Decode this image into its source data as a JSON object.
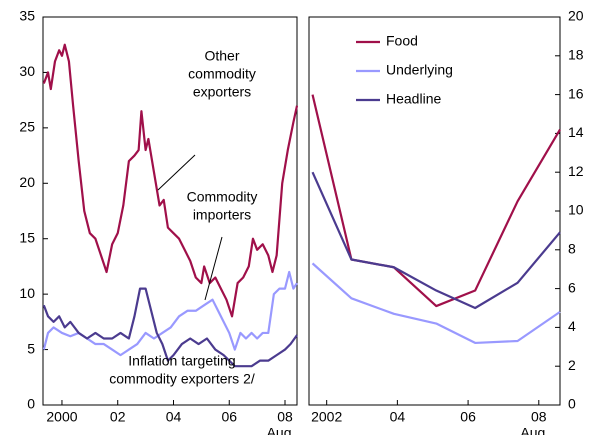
{
  "chart_data": [
    {
      "type": "line",
      "xlim": [
        1999.32,
        2008.43
      ],
      "ylim": [
        0,
        35
      ],
      "yticks": [
        0,
        5,
        10,
        15,
        20,
        25,
        30,
        35
      ],
      "xticks": [
        2000,
        {
          "value": 2002,
          "label": "02"
        },
        {
          "value": 2004,
          "label": "04"
        },
        {
          "value": 2006,
          "label": "06"
        },
        {
          "value": 2008,
          "label": "08"
        }
      ],
      "x_note": "Aug.",
      "y_axis_position": "left",
      "series": [
        {
          "label": [
            "Other",
            "commodity",
            "exporters"
          ],
          "color": "#a0104a",
          "x": [
            1999.35,
            1999.5,
            1999.6,
            1999.75,
            1999.9,
            2000.0,
            2000.1,
            2000.25,
            2000.4,
            2000.6,
            2000.8,
            2001.0,
            2001.2,
            2001.4,
            2001.6,
            2001.8,
            2002.0,
            2002.2,
            2002.4,
            2002.6,
            2002.75,
            2002.85,
            2003.0,
            2003.1,
            2003.3,
            2003.5,
            2003.65,
            2003.8,
            2004.0,
            2004.2,
            2004.4,
            2004.6,
            2004.8,
            2005.0,
            2005.1,
            2005.3,
            2005.5,
            2005.7,
            2005.9,
            2006.1,
            2006.3,
            2006.5,
            2006.7,
            2006.85,
            2007.0,
            2007.2,
            2007.4,
            2007.55,
            2007.7,
            2007.9,
            2008.1,
            2008.3,
            2008.43
          ],
          "values": [
            29,
            30,
            28.5,
            31,
            32,
            31.5,
            32.5,
            31,
            27,
            22,
            17.5,
            15.5,
            15,
            13.5,
            12,
            14.5,
            15.5,
            18,
            22,
            22.5,
            23,
            26.5,
            23,
            24,
            21,
            18,
            18.5,
            16,
            15.5,
            15,
            14,
            13,
            11.5,
            11,
            12.5,
            11,
            11.5,
            10.5,
            9.5,
            8,
            11,
            11.5,
            12.5,
            15,
            14,
            14.5,
            13.5,
            12,
            13.5,
            20,
            23,
            25.5,
            27
          ]
        },
        {
          "label": [
            "Commodity",
            "importers"
          ],
          "color": "#9999ff",
          "x": [
            1999.35,
            1999.5,
            1999.7,
            2000.0,
            2000.3,
            2000.6,
            2000.9,
            2001.2,
            2001.5,
            2001.8,
            2002.1,
            2002.4,
            2002.7,
            2003.0,
            2003.3,
            2003.6,
            2003.9,
            2004.2,
            2004.5,
            2004.8,
            2005.1,
            2005.4,
            2005.6,
            2005.8,
            2006.0,
            2006.2,
            2006.4,
            2006.6,
            2006.8,
            2007.0,
            2007.2,
            2007.4,
            2007.6,
            2007.8,
            2008.0,
            2008.15,
            2008.3,
            2008.43
          ],
          "values": [
            5,
            6.5,
            7,
            6.5,
            6.2,
            6.5,
            6,
            5.5,
            5.5,
            5,
            4.5,
            5,
            5.5,
            6.5,
            6,
            6.5,
            7,
            8,
            8.5,
            8.5,
            9,
            9.5,
            8.5,
            7.5,
            6.5,
            5,
            6.5,
            6,
            6.5,
            6,
            6.5,
            6.5,
            10,
            10.5,
            10.5,
            12,
            10.5,
            11
          ]
        },
        {
          "label": [
            "Inflation targeting",
            "commodity exporters 2/"
          ],
          "color": "#4b3b8f",
          "x": [
            1999.35,
            1999.5,
            1999.7,
            1999.9,
            2000.1,
            2000.3,
            2000.6,
            2000.9,
            2001.2,
            2001.5,
            2001.8,
            2002.1,
            2002.4,
            2002.6,
            2002.8,
            2003.0,
            2003.2,
            2003.4,
            2003.6,
            2003.8,
            2004.0,
            2004.3,
            2004.6,
            2004.9,
            2005.2,
            2005.5,
            2005.8,
            2006.0,
            2006.2,
            2006.5,
            2006.8,
            2007.1,
            2007.4,
            2007.7,
            2008.0,
            2008.2,
            2008.43
          ],
          "values": [
            9,
            8,
            7.5,
            8,
            7,
            7.5,
            6.5,
            6,
            6.5,
            6,
            6,
            6.5,
            6,
            8,
            10.5,
            10.5,
            8.5,
            6.5,
            5.5,
            4,
            4.5,
            5.5,
            6,
            5.5,
            6,
            5,
            4.5,
            4,
            3.5,
            3.5,
            3.5,
            4,
            4,
            4.5,
            5,
            5.5,
            6.3
          ]
        }
      ]
    },
    {
      "type": "line",
      "xlim": [
        2001.5,
        2008.6
      ],
      "ylim": [
        0,
        20
      ],
      "yticks": [
        0,
        2,
        4,
        6,
        8,
        10,
        12,
        14,
        16,
        18,
        20
      ],
      "xticks": [
        2002,
        {
          "value": 2004,
          "label": "04"
        },
        {
          "value": 2006,
          "label": "06"
        },
        {
          "value": 2008,
          "label": "08"
        }
      ],
      "x_note": "Aug.",
      "y_axis_position": "right",
      "legend": "upper left",
      "x": [
        2001.6,
        2002.7,
        2003.9,
        2005.1,
        2006.2,
        2007.4,
        2008.6
      ],
      "series": [
        {
          "name": "Food",
          "color": "#a0104a",
          "values": [
            16,
            7.5,
            7.1,
            5.1,
            5.9,
            10.5,
            14.2
          ]
        },
        {
          "name": "Underlying",
          "color": "#9999ff",
          "values": [
            7.3,
            5.5,
            4.7,
            4.2,
            3.2,
            3.3,
            4.8
          ]
        },
        {
          "name": "Headline",
          "color": "#4b3b8f",
          "values": [
            12,
            7.5,
            7.1,
            5.9,
            5.0,
            6.3,
            8.9
          ]
        }
      ]
    }
  ]
}
